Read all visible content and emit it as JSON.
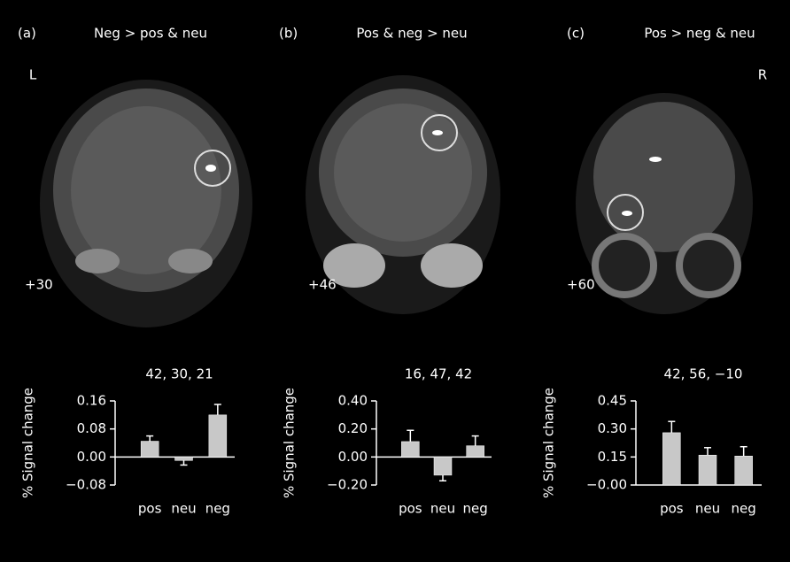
{
  "chart_data": [
    {
      "type": "bar",
      "panel": "(a)",
      "contrast": "Neg > pos & neu",
      "hemisphere_label": "L",
      "slice": "+30",
      "title": "42, 30, 21",
      "ylabel": "% Signal change",
      "categories": [
        "pos",
        "neu",
        "neg"
      ],
      "values": [
        0.045,
        -0.01,
        0.12
      ],
      "errors": [
        0.015,
        0.013,
        0.03
      ],
      "color": "#c8c8c8",
      "ylim": [
        -0.08,
        0.16
      ],
      "yticks": [
        {
          "value": -0.08,
          "label": "−0.08"
        },
        {
          "value": 0,
          "label": "0.00"
        },
        {
          "value": 0.08,
          "label": "0.08"
        },
        {
          "value": 0.16,
          "label": "0.16"
        }
      ]
    },
    {
      "type": "bar",
      "panel": "(b)",
      "contrast": "Pos & neg > neu",
      "slice": "+46",
      "title": "16, 47, 42",
      "ylabel": "% Signal change",
      "categories": [
        "pos",
        "neu",
        "neg"
      ],
      "values": [
        0.11,
        -0.13,
        0.08
      ],
      "errors": [
        0.08,
        0.04,
        0.07
      ],
      "color": "#c8c8c8",
      "ylim": [
        -0.2,
        0.4
      ],
      "yticks": [
        {
          "value": -0.2,
          "label": "−0.20"
        },
        {
          "value": 0,
          "label": "0.00"
        },
        {
          "value": 0.2,
          "label": "0.20"
        },
        {
          "value": 0.4,
          "label": "0.40"
        }
      ]
    },
    {
      "type": "bar",
      "panel": "(c)",
      "contrast": "Pos > neg & neu",
      "hemisphere_label": "R",
      "slice": "+60",
      "title": "42, 56, −10",
      "ylabel": "% Signal change",
      "categories": [
        "pos",
        "neu",
        "neg"
      ],
      "values": [
        0.28,
        0.16,
        0.155
      ],
      "errors": [
        0.06,
        0.04,
        0.05
      ],
      "color": "#c8c8c8",
      "ylim": [
        0,
        0.45
      ],
      "yticks": [
        {
          "value": 0,
          "label": "−0.00"
        },
        {
          "value": 0.15,
          "label": "0.15"
        },
        {
          "value": 0.3,
          "label": "0.30"
        },
        {
          "value": 0.45,
          "label": "0.45"
        }
      ]
    }
  ]
}
